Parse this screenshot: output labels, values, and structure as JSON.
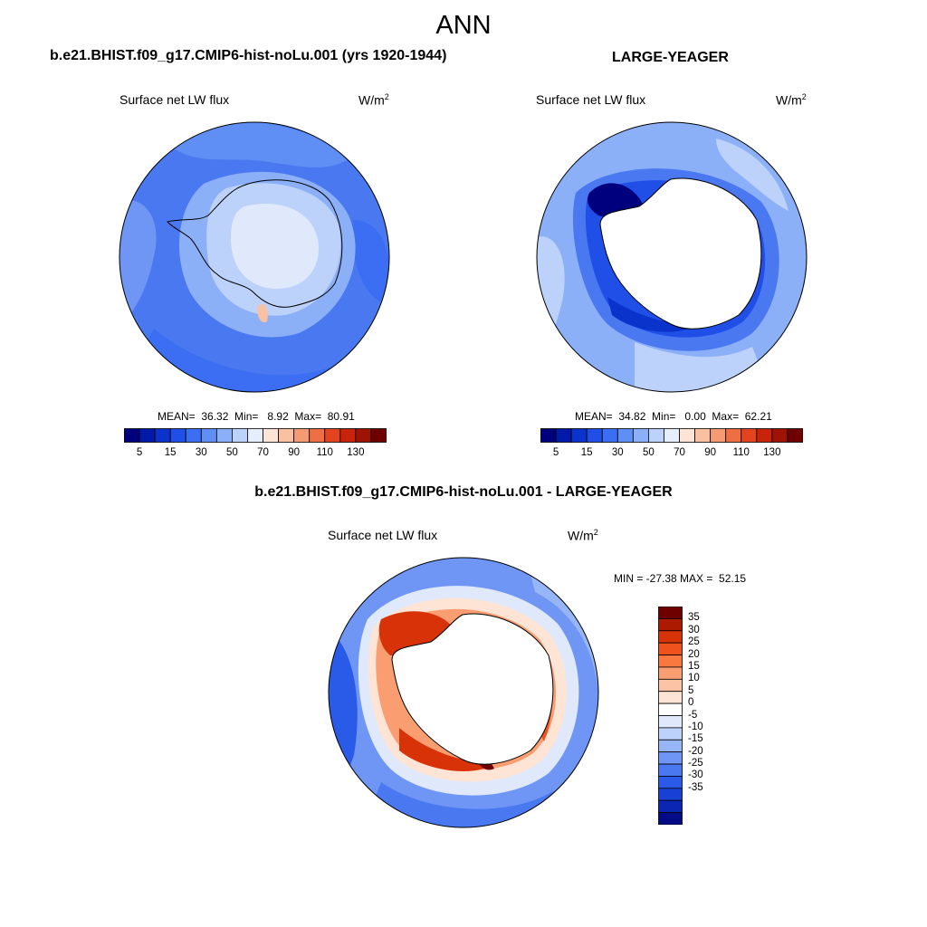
{
  "title": "ANN",
  "panel1": {
    "title": "b.e21.BHIST.f09_g17.CMIP6-hist-noLu.001 (yrs 1920-1944)",
    "variable": "Surface net LW flux",
    "units": "W/m",
    "units_sup": "2",
    "stats": "MEAN=  36.32  Min=   8.92  Max=  80.91"
  },
  "panel2": {
    "title": "LARGE-YEAGER",
    "variable": "Surface net LW flux",
    "units": "W/m",
    "units_sup": "2",
    "stats": "MEAN=  34.82  Min=   0.00  Max=  62.21"
  },
  "panel3": {
    "title": "b.e21.BHIST.f09_g17.CMIP6-hist-noLu.001 - LARGE-YEAGER",
    "variable": "Surface net LW flux",
    "units": "W/m",
    "units_sup": "2",
    "stats": "MIN = -27.38 MAX =  52.15"
  },
  "colorbar_main": {
    "colors": [
      "#00007f",
      "#0019a8",
      "#0a33cc",
      "#1f4fe6",
      "#3b6ef2",
      "#5f8ef5",
      "#8cb0f8",
      "#bcd2fb",
      "#e4eefc",
      "#fde4d6",
      "#f9c0a2",
      "#f59a72",
      "#ef6f44",
      "#e3431e",
      "#c82409",
      "#9e1303",
      "#6e0000"
    ],
    "labels": [
      "5",
      "15",
      "30",
      "50",
      "70",
      "90",
      "110",
      "130"
    ]
  },
  "colorbar_diff": {
    "colors": [
      "#6e0000",
      "#ad1a02",
      "#d83208",
      "#f0521e",
      "#f87840",
      "#fa9e72",
      "#fcc3a4",
      "#fde4d4",
      "#ffffff",
      "#dfe9fb",
      "#bcd2fa",
      "#96b6f7",
      "#6f96f4",
      "#4a78f0",
      "#2a5be8",
      "#1840d4",
      "#0b26b3",
      "#020a86"
    ],
    "labels": [
      "35",
      "30",
      "25",
      "20",
      "15",
      "10",
      "5",
      "0",
      "-5",
      "-10",
      "-15",
      "-20",
      "-25",
      "-30",
      "-35"
    ]
  }
}
